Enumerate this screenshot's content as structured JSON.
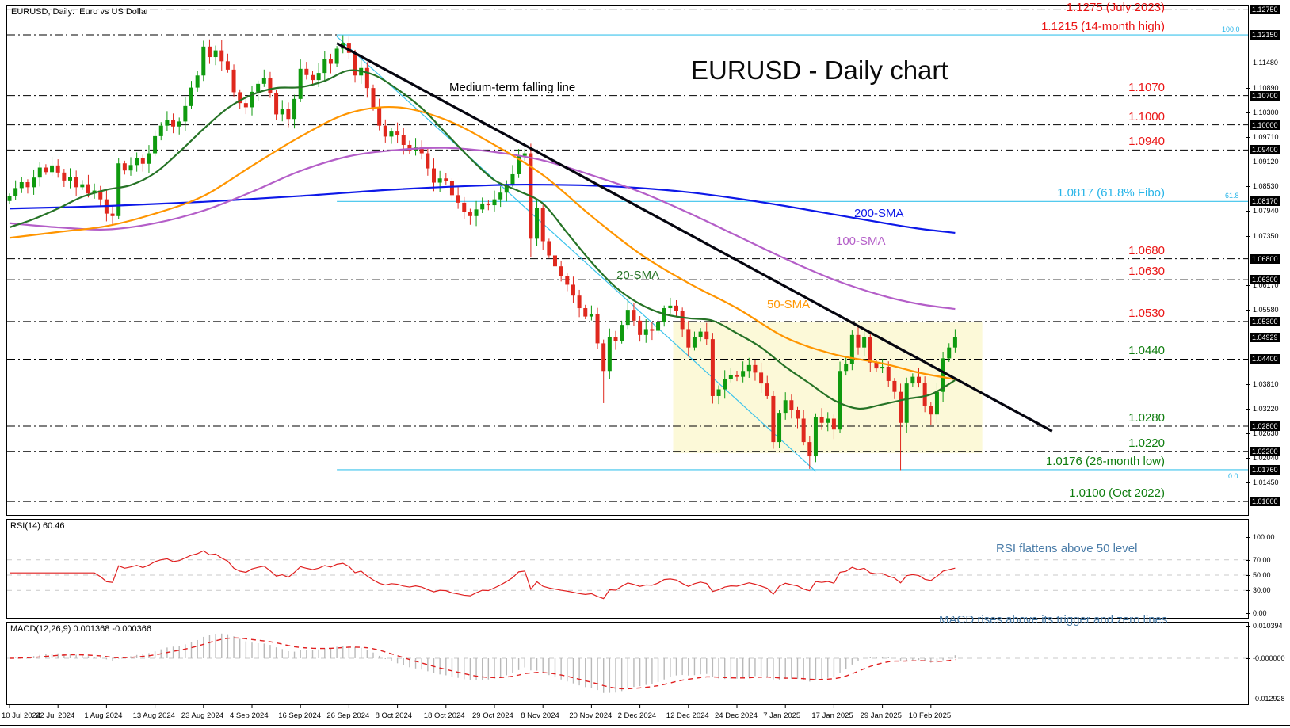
{
  "window": {
    "title": "EURUSD, Daily:  Euro vs US Dollar"
  },
  "colors": {
    "candle_up": "#0f9a0f",
    "candle_down": "#df281e",
    "sma20": "#267326",
    "sma50": "#ff9500",
    "sma100": "#b45ec8",
    "sma200": "#0d18e8",
    "level_line": "#000000",
    "fib_line": "#3cc3ec",
    "fib_text": "#29b5e8",
    "ann_red": "#ea1414",
    "ann_green": "#0f7d0f",
    "ann_blue": "#4a7ca8",
    "trendline_black": "#05050f",
    "rsi_line": "#e02020",
    "macd_hist": "#b9b9b9",
    "macd_signal": "#e02020",
    "grid_dash": "#c9c9c9",
    "box_fill": "#fcf9d8"
  },
  "chart_data": {
    "type": "candlestick",
    "symbol": "EURUSD",
    "timeframe": "Daily",
    "title": "EURUSD - Daily chart",
    "trendline_label": "Medium-term falling line",
    "price_range": {
      "top": 1.1287,
      "bottom": 1.0068
    },
    "closes": [
      1.083,
      1.0849,
      1.0863,
      1.0851,
      1.0874,
      1.0898,
      1.0887,
      1.0903,
      1.0886,
      1.0867,
      1.0875,
      1.0851,
      1.0858,
      1.0836,
      1.0843,
      1.0822,
      1.0788,
      1.0782,
      1.0908,
      1.0891,
      1.0904,
      1.0921,
      1.0907,
      1.0932,
      1.0973,
      1.0998,
      1.1012,
      1.0996,
      1.1008,
      1.1045,
      1.1089,
      1.1118,
      1.1187,
      1.1162,
      1.1178,
      1.1152,
      1.1132,
      1.1078,
      1.1052,
      1.1042,
      1.1079,
      1.1098,
      1.1112,
      1.1075,
      1.1025,
      1.1038,
      1.1014,
      1.1062,
      1.1134,
      1.1119,
      1.1107,
      1.1124,
      1.1158,
      1.1146,
      1.1182,
      1.1196,
      1.1172,
      1.1118,
      1.1136,
      1.1088,
      1.1042,
      1.0998,
      1.0972,
      1.0984,
      1.0976,
      1.0952,
      1.0938,
      1.0946,
      1.0932,
      1.0896,
      1.0862,
      1.0872,
      1.0866,
      1.0832,
      1.0814,
      1.0792,
      1.0782,
      1.0798,
      1.0812,
      1.0808,
      1.0822,
      1.0838,
      1.0858,
      1.0882,
      1.0926,
      1.0932,
      1.0728,
      1.0802,
      1.0722,
      1.0688,
      1.0662,
      1.0638,
      1.0618,
      1.0592,
      1.0562,
      1.0542,
      1.0548,
      1.0478,
      1.0412,
      1.0492,
      1.0484,
      1.0522,
      1.0558,
      1.0532,
      1.0498,
      1.0512,
      1.0508,
      1.0528,
      1.0562,
      1.0568,
      1.0556,
      1.0512,
      1.0468,
      1.0492,
      1.0506,
      1.0488,
      1.0352,
      1.0368,
      1.0392,
      1.0402,
      1.0398,
      1.0412,
      1.0426,
      1.0408,
      1.0382,
      1.0352,
      1.0242,
      1.0312,
      1.0342,
      1.0318,
      1.0298,
      1.0242,
      1.0208,
      1.0302,
      1.0288,
      1.0298,
      1.0272,
      1.0412,
      1.0428,
      1.0498,
      1.0468,
      1.0492,
      1.0432,
      1.0418,
      1.0422,
      1.0388,
      1.0362,
      1.0288,
      1.0382,
      1.0398,
      1.0384,
      1.0328,
      1.0308,
      1.0362,
      1.0442,
      1.0468,
      1.0493
    ],
    "wick_overrides": {
      "32": {
        "h": 1.1201
      },
      "55": {
        "h": 1.1214
      },
      "56": {
        "h": 1.1211
      },
      "86": {
        "l": 1.0683
      },
      "98": {
        "l": 1.0335
      },
      "116": {
        "l": 1.0334
      },
      "126": {
        "l": 1.0226
      },
      "132": {
        "l": 1.0178
      },
      "147": {
        "l": 1.0175
      },
      "152": {
        "l": 1.0282
      },
      "156": {
        "h": 1.0512
      }
    },
    "smas": {
      "s20": {
        "label": "20-SMA",
        "period": 20,
        "points": [
          [
            0,
            1.0755
          ],
          [
            4,
            1.0775
          ],
          [
            8,
            1.08
          ],
          [
            12,
            1.0828
          ],
          [
            16,
            1.0845
          ],
          [
            20,
            1.0856
          ],
          [
            24,
            1.0885
          ],
          [
            28,
            1.0935
          ],
          [
            32,
            1.099
          ],
          [
            36,
            1.104
          ],
          [
            40,
            1.1072
          ],
          [
            44,
            1.1088
          ],
          [
            48,
            1.109
          ],
          [
            52,
            1.1105
          ],
          [
            56,
            1.113
          ],
          [
            60,
            1.112
          ],
          [
            64,
            1.1085
          ],
          [
            68,
            1.104
          ],
          [
            72,
            1.098
          ],
          [
            76,
            1.092
          ],
          [
            80,
            1.0868
          ],
          [
            84,
            1.0842
          ],
          [
            88,
            1.0812
          ],
          [
            92,
            1.0742
          ],
          [
            96,
            1.0672
          ],
          [
            100,
            1.0612
          ],
          [
            104,
            1.0572
          ],
          [
            108,
            1.0548
          ],
          [
            112,
            1.0538
          ],
          [
            116,
            1.0532
          ],
          [
            120,
            1.0502
          ],
          [
            124,
            1.0468
          ],
          [
            128,
            1.0422
          ],
          [
            132,
            1.0382
          ],
          [
            136,
            1.0342
          ],
          [
            140,
            1.0322
          ],
          [
            144,
            1.0332
          ],
          [
            148,
            1.0345
          ],
          [
            152,
            1.0356
          ],
          [
            156,
            1.039
          ]
        ]
      },
      "s50": {
        "label": "50-SMA",
        "period": 50,
        "points": [
          [
            0,
            1.073
          ],
          [
            8,
            1.0744
          ],
          [
            16,
            1.0758
          ],
          [
            24,
            1.0788
          ],
          [
            32,
            1.083
          ],
          [
            40,
            1.0902
          ],
          [
            48,
            1.0972
          ],
          [
            56,
            1.1028
          ],
          [
            64,
            1.1042
          ],
          [
            72,
            1.1012
          ],
          [
            80,
            1.0952
          ],
          [
            88,
            1.088
          ],
          [
            96,
            1.0782
          ],
          [
            104,
            1.0692
          ],
          [
            112,
            1.0622
          ],
          [
            120,
            1.0562
          ],
          [
            128,
            1.0492
          ],
          [
            136,
            1.0452
          ],
          [
            144,
            1.043
          ],
          [
            150,
            1.0408
          ],
          [
            156,
            1.0392
          ]
        ]
      },
      "s100": {
        "label": "100-SMA",
        "period": 100,
        "points": [
          [
            0,
            1.0765
          ],
          [
            8,
            1.0755
          ],
          [
            16,
            1.075
          ],
          [
            24,
            1.0765
          ],
          [
            32,
            1.0795
          ],
          [
            40,
            1.084
          ],
          [
            48,
            1.089
          ],
          [
            56,
            1.0925
          ],
          [
            64,
            1.094
          ],
          [
            72,
            1.0945
          ],
          [
            80,
            1.0935
          ],
          [
            88,
            1.0915
          ],
          [
            96,
            1.088
          ],
          [
            104,
            1.084
          ],
          [
            112,
            1.079
          ],
          [
            120,
            1.0735
          ],
          [
            128,
            1.068
          ],
          [
            136,
            1.063
          ],
          [
            144,
            1.0592
          ],
          [
            150,
            1.0572
          ],
          [
            156,
            1.056
          ]
        ]
      },
      "s200": {
        "label": "200-SMA",
        "period": 200,
        "points": [
          [
            0,
            1.08
          ],
          [
            16,
            1.0806
          ],
          [
            32,
            1.0816
          ],
          [
            48,
            1.083
          ],
          [
            64,
            1.0846
          ],
          [
            80,
            1.0856
          ],
          [
            88,
            1.0857
          ],
          [
            96,
            1.0855
          ],
          [
            104,
            1.0849
          ],
          [
            112,
            1.0839
          ],
          [
            120,
            1.0824
          ],
          [
            128,
            1.0806
          ],
          [
            136,
            1.0786
          ],
          [
            144,
            1.0766
          ],
          [
            150,
            1.0752
          ],
          [
            156,
            1.0742
          ]
        ]
      }
    },
    "level_lines": [
      1.1275,
      1.1215,
      1.107,
      1.1,
      1.094,
      1.068,
      1.063,
      1.053,
      1.044,
      1.028,
      1.022,
      1.01
    ],
    "fib_lines": [
      {
        "label": "100.0",
        "price": 1.1215
      },
      {
        "label": "61.8",
        "price": 1.0817
      },
      {
        "label": "0.0",
        "price": 1.0176
      }
    ],
    "trendlines": {
      "black_falling": {
        "b1": 54,
        "p1": 1.1195,
        "b2": 172,
        "p2": 1.0268
      },
      "cyan_channel": {
        "b1": 54,
        "p1": 1.1211,
        "b2": 133,
        "p2": 1.0172
      }
    },
    "highlight_box": {
      "b1": 110,
      "b2": 161,
      "p1": 1.0528,
      "p2": 1.0216
    },
    "annotations": [
      {
        "text": "1.1275 (July 2023)",
        "price": 1.1275,
        "color": "red"
      },
      {
        "text": "1.1215 (14-month high)",
        "price": 1.1215,
        "color": "red"
      },
      {
        "text": "1.1070",
        "price": 1.107,
        "color": "red"
      },
      {
        "text": "1.1000",
        "price": 1.1,
        "color": "red"
      },
      {
        "text": "1.0940",
        "price": 1.094,
        "color": "red"
      },
      {
        "text": "1.0817 (61.8% Fibo)",
        "price": 1.0817,
        "color": "cyan"
      },
      {
        "text": "1.0680",
        "price": 1.068,
        "color": "red"
      },
      {
        "text": "1.0630",
        "price": 1.063,
        "color": "red"
      },
      {
        "text": "1.0530",
        "price": 1.053,
        "color": "red"
      },
      {
        "text": "1.0440",
        "price": 1.044,
        "color": "green"
      },
      {
        "text": "1.0280",
        "price": 1.028,
        "color": "green"
      },
      {
        "text": "1.0220",
        "price": 1.022,
        "color": "green"
      },
      {
        "text": "1.0176 (26-month low)",
        "price": 1.0176,
        "color": "green"
      },
      {
        "text": "1.0100 (Oct 2022)",
        "price": 1.01,
        "color": "green"
      }
    ],
    "price_scale": {
      "tags": [
        {
          "t": "1.12750",
          "p": 1.1275
        },
        {
          "t": "1.12150",
          "p": 1.1215
        },
        {
          "t": "1.10700",
          "p": 1.107
        },
        {
          "t": "1.10000",
          "p": 1.1
        },
        {
          "t": "1.09400",
          "p": 1.094
        },
        {
          "t": "1.08170",
          "p": 1.0817
        },
        {
          "t": "1.06800",
          "p": 1.068
        },
        {
          "t": "1.06300",
          "p": 1.063
        },
        {
          "t": "1.05300",
          "p": 1.053
        },
        {
          "t": "1.04929",
          "p": 1.04929
        },
        {
          "t": "1.04400",
          "p": 1.044
        },
        {
          "t": "1.02800",
          "p": 1.028
        },
        {
          "t": "1.02200",
          "p": 1.022
        },
        {
          "t": "1.01760",
          "p": 1.0176
        },
        {
          "t": "1.01000",
          "p": 1.01
        }
      ],
      "plain": [
        {
          "t": "1.11480",
          "p": 1.1148
        },
        {
          "t": "1.10890",
          "p": 1.1089
        },
        {
          "t": "1.10300",
          "p": 1.103
        },
        {
          "t": "1.09710",
          "p": 1.0971
        },
        {
          "t": "1.09120",
          "p": 1.0912
        },
        {
          "t": "1.08530",
          "p": 1.0853
        },
        {
          "t": "1.07940",
          "p": 1.0794
        },
        {
          "t": "1.07350",
          "p": 1.0735
        },
        {
          "t": "1.06170",
          "p": 1.0617
        },
        {
          "t": "1.05580",
          "p": 1.0558
        },
        {
          "t": "1.03810",
          "p": 1.0381
        },
        {
          "t": "1.03220",
          "p": 1.0322
        },
        {
          "t": "1.02630",
          "p": 1.0263
        },
        {
          "t": "1.02040",
          "p": 1.0204
        },
        {
          "t": "1.01450",
          "p": 1.0145
        }
      ],
      "current": "1.04929"
    },
    "x_axis": {
      "tick_bars": [
        0,
        8,
        16,
        24,
        32,
        40,
        48,
        56,
        64,
        72,
        80,
        88,
        96,
        104,
        112,
        120,
        128,
        136,
        144,
        152
      ],
      "labels": [
        "10 Jul 2024",
        "22 Jul 2024",
        "1 Aug 2024",
        "13 Aug 2024",
        "23 Aug 2024",
        "4 Sep 2024",
        "16 Sep 2024",
        "26 Sep 2024",
        "8 Oct 2024",
        "18 Oct 2024",
        "29 Oct 2024",
        "8 Nov 2024",
        "20 Nov 2024",
        "2 Dec 2024",
        "12 Dec 2024",
        "24 Dec 2024",
        "7 Jan 2025",
        "17 Jan 2025",
        "29 Jan 2025",
        "10 Feb 2025"
      ]
    },
    "rsi": {
      "label": "RSI(14) 60.46",
      "period": 14,
      "value": 60.46,
      "annotation": "RSI flattens above 50 level",
      "axis_labels": [
        {
          "t": "100.00",
          "v": 100
        },
        {
          "t": "70.00",
          "v": 70
        },
        {
          "t": "50.00",
          "v": 50
        },
        {
          "t": "30.00",
          "v": 30
        },
        {
          "t": "0.00",
          "v": 0
        }
      ],
      "dashed_levels": [
        70,
        50,
        30
      ],
      "range": [
        0,
        100
      ]
    },
    "macd": {
      "label": "MACD(12,26,9) 0.001368 -0.000366",
      "params": [
        12,
        26,
        9
      ],
      "main_value": 0.001368,
      "signal_value": -0.000366,
      "annotation": "MACD rises above its trigger and zero lines",
      "axis_labels": [
        {
          "t": "0.010394",
          "v": 0.010394
        },
        {
          "t": "-0.000000",
          "v": 0
        },
        {
          "t": "-0.012928",
          "v": -0.012928
        }
      ],
      "range": [
        -0.012928,
        0.010394
      ]
    }
  }
}
